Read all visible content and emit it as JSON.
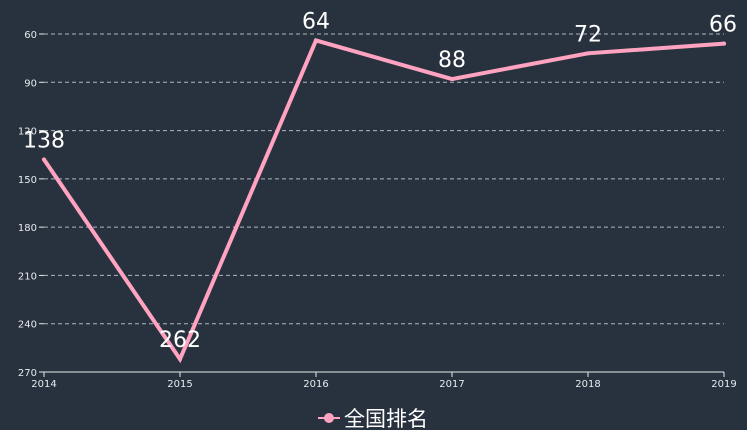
{
  "chart_data": {
    "type": "line",
    "categories": [
      "2014",
      "2015",
      "2016",
      "2017",
      "2018",
      "2019"
    ],
    "series": [
      {
        "name": "全国排名",
        "values": [
          138,
          262,
          64,
          88,
          72,
          66
        ],
        "color": "#ffa3c0"
      }
    ],
    "y_axis": {
      "inverse": true,
      "min": 60,
      "max": 270,
      "ticks": [
        "60",
        "90",
        "120",
        "150",
        "180",
        "210",
        "240",
        "270"
      ]
    },
    "grid": true,
    "legend": {
      "position": "bottom-center",
      "items": [
        "全国排名"
      ]
    },
    "background": "#28323e"
  }
}
